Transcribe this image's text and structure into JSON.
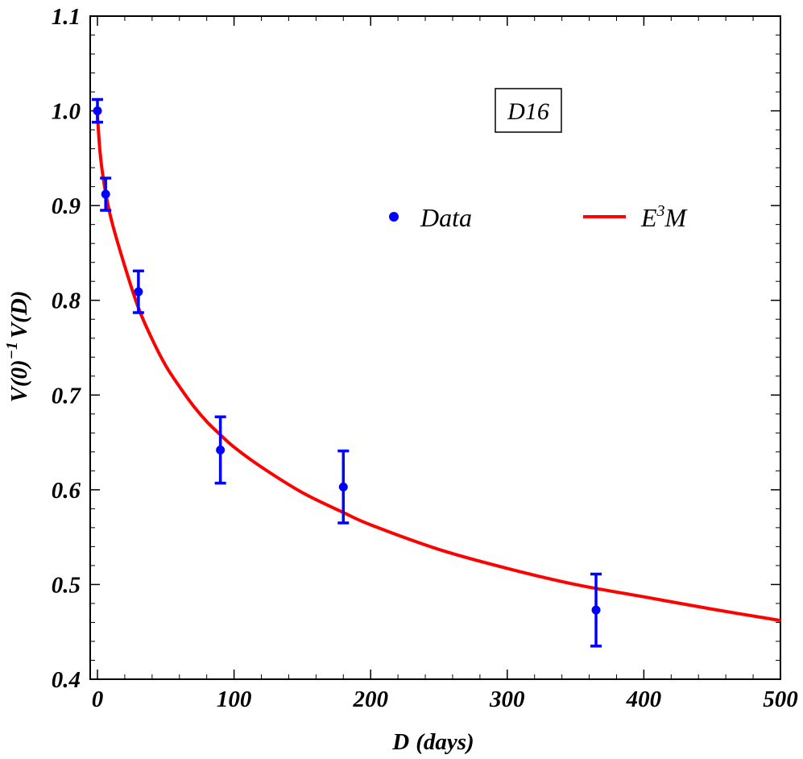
{
  "chart_data": {
    "type": "scatter",
    "x_axis": {
      "label_main": "D",
      "label_unit": "(days)",
      "range": [
        0,
        500
      ],
      "ticks": [
        0,
        100,
        200,
        300,
        400,
        500
      ],
      "tick_labels": [
        "0",
        "100",
        "200",
        "300",
        "400",
        "500"
      ]
    },
    "y_axis": {
      "label_prefix": "V(0)",
      "label_exp": "−1",
      "label_suffix": "V(D)",
      "range": [
        0.4,
        1.1
      ],
      "ticks": [
        0.4,
        0.5,
        0.6,
        0.7,
        0.8,
        0.9,
        1.0,
        1.1
      ],
      "tick_labels": [
        "0.4",
        "0.5",
        "0.6",
        "0.7",
        "0.8",
        "0.9",
        "1.0",
        "1.1"
      ]
    },
    "annotation": "D16",
    "series": [
      {
        "name": "Data",
        "kind": "points_with_error_bars",
        "color": "#0000ff",
        "points": [
          {
            "x": 0,
            "y": 1.0,
            "err": 0.012
          },
          {
            "x": 6,
            "y": 0.912,
            "err": 0.017
          },
          {
            "x": 30,
            "y": 0.809,
            "err": 0.022
          },
          {
            "x": 90,
            "y": 0.642,
            "err": 0.035
          },
          {
            "x": 180,
            "y": 0.603,
            "err": 0.038
          },
          {
            "x": 365,
            "y": 0.473,
            "err": 0.038
          }
        ]
      },
      {
        "name_main": "E",
        "name_sup": "3",
        "name_tail": "M",
        "kind": "line",
        "color": "#ff0000",
        "points": [
          {
            "x": 0,
            "y": 0.995
          },
          {
            "x": 2,
            "y": 0.955
          },
          {
            "x": 5,
            "y": 0.922
          },
          {
            "x": 10,
            "y": 0.886
          },
          {
            "x": 20,
            "y": 0.836
          },
          {
            "x": 30,
            "y": 0.792
          },
          {
            "x": 40,
            "y": 0.759
          },
          {
            "x": 50,
            "y": 0.731
          },
          {
            "x": 60,
            "y": 0.709
          },
          {
            "x": 70,
            "y": 0.689
          },
          {
            "x": 80,
            "y": 0.672
          },
          {
            "x": 90,
            "y": 0.658
          },
          {
            "x": 100,
            "y": 0.645
          },
          {
            "x": 120,
            "y": 0.624
          },
          {
            "x": 150,
            "y": 0.597
          },
          {
            "x": 180,
            "y": 0.576
          },
          {
            "x": 200,
            "y": 0.563
          },
          {
            "x": 250,
            "y": 0.537
          },
          {
            "x": 300,
            "y": 0.517
          },
          {
            "x": 350,
            "y": 0.5
          },
          {
            "x": 400,
            "y": 0.487
          },
          {
            "x": 450,
            "y": 0.474
          },
          {
            "x": 500,
            "y": 0.462
          }
        ]
      }
    ],
    "legend_position": "upper-right-inside",
    "grid": false
  }
}
